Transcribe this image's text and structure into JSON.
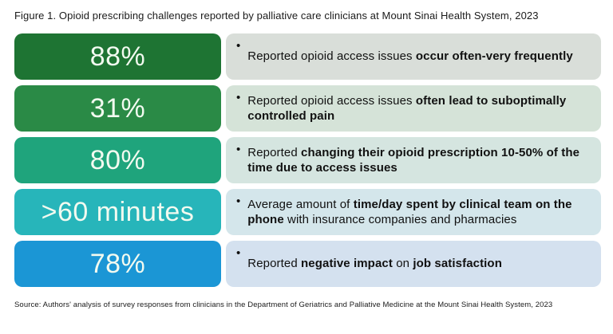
{
  "figure": {
    "title": "Figure 1. Opioid prescribing challenges reported by palliative care clinicians at Mount Sinai Health System, 2023",
    "source": "Source: Authors' analysis of survey responses from clinicians in the Department of Geriatrics and Palliative Medicine at the Mount Sinai Health System, 2023",
    "bullet": "•",
    "stat_text_color": "#f2faf0",
    "rows": [
      {
        "stat": "88%",
        "stat_bg": "#1e7433",
        "desc_bg": "#d9ded9",
        "segments": [
          {
            "text": "Reported opioid access issues ",
            "bold": false
          },
          {
            "text": "occur often-very frequently",
            "bold": true
          }
        ]
      },
      {
        "stat": "31%",
        "stat_bg": "#2a8a46",
        "desc_bg": "#d5e3d8",
        "segments": [
          {
            "text": "Reported opioid access issues ",
            "bold": false
          },
          {
            "text": "often lead to suboptimally controlled pain",
            "bold": true
          }
        ]
      },
      {
        "stat": "80%",
        "stat_bg": "#1fa47c",
        "desc_bg": "#d5e5e0",
        "segments": [
          {
            "text": "Reported ",
            "bold": false
          },
          {
            "text": "changing their opioid prescription 10-50% of the time due to access issues",
            "bold": true
          }
        ]
      },
      {
        "stat": ">60 minutes",
        "stat_bg": "#27b5ba",
        "desc_bg": "#d4e6eb",
        "segments": [
          {
            "text": "Average amount of ",
            "bold": false
          },
          {
            "text": "time/day spent by clinical team on the phone",
            "bold": true
          },
          {
            "text": " with insurance companies and pharmacies",
            "bold": false
          }
        ]
      },
      {
        "stat": "78%",
        "stat_bg": "#1b96d5",
        "desc_bg": "#d4e1ef",
        "segments": [
          {
            "text": "Reported ",
            "bold": false
          },
          {
            "text": "negative impact",
            "bold": true
          },
          {
            "text": " on ",
            "bold": false
          },
          {
            "text": "job satisfaction",
            "bold": true
          }
        ]
      }
    ]
  },
  "chart_data": {
    "type": "table",
    "title": "Figure 1. Opioid prescribing challenges reported by palliative care clinicians at Mount Sinai Health System, 2023",
    "columns": [
      "value",
      "description"
    ],
    "rows": [
      [
        "88%",
        "Reported opioid access issues occur often-very frequently"
      ],
      [
        "31%",
        "Reported opioid access issues often lead to suboptimally controlled pain"
      ],
      [
        "80%",
        "Reported changing their opioid prescription 10-50% of the time due to access issues"
      ],
      [
        ">60 minutes",
        "Average amount of time/day spent by clinical team on the phone with insurance companies and pharmacies"
      ],
      [
        "78%",
        "Reported negative impact on job satisfaction"
      ]
    ],
    "source": "Source: Authors' analysis of survey responses from clinicians in the Department of Geriatrics and Palliative Medicine at the Mount Sinai Health System, 2023"
  }
}
